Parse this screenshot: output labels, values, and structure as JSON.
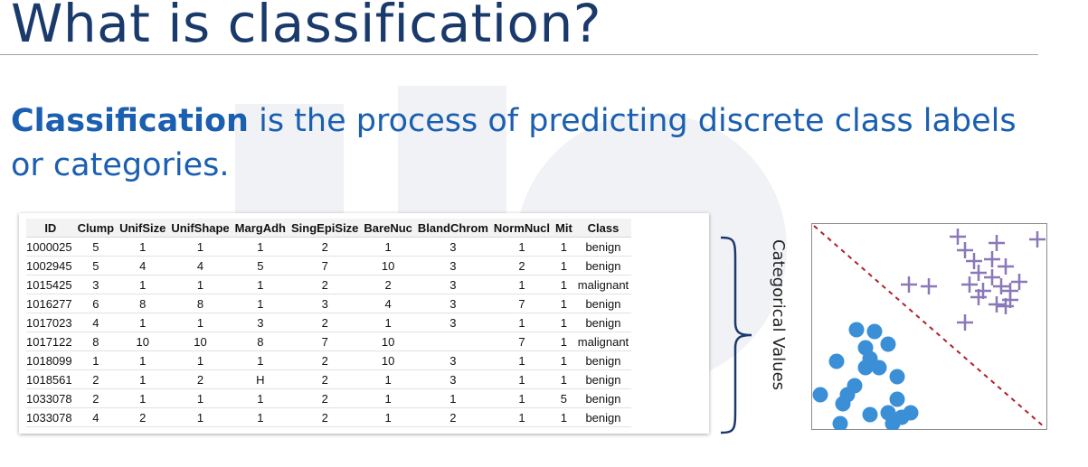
{
  "title": "What is classification?",
  "definition": {
    "term": "Classification",
    "text": " is the process of predicting discrete class labels or categories."
  },
  "table": {
    "headers": [
      "ID",
      "Clump",
      "UnifSize",
      "UnifShape",
      "MargAdh",
      "SingEpiSize",
      "BareNuc",
      "BlandChrom",
      "NormNucl",
      "Mit",
      "Class"
    ],
    "rows": [
      [
        "1000025",
        "5",
        "1",
        "1",
        "1",
        "2",
        "1",
        "3",
        "1",
        "1",
        "benign"
      ],
      [
        "1002945",
        "5",
        "4",
        "4",
        "5",
        "7",
        "10",
        "3",
        "2",
        "1",
        "benign"
      ],
      [
        "1015425",
        "3",
        "1",
        "1",
        "1",
        "2",
        "2",
        "3",
        "1",
        "1",
        "malignant"
      ],
      [
        "1016277",
        "6",
        "8",
        "8",
        "1",
        "3",
        "4",
        "3",
        "7",
        "1",
        "benign"
      ],
      [
        "1017023",
        "4",
        "1",
        "1",
        "3",
        "2",
        "1",
        "3",
        "1",
        "1",
        "benign"
      ],
      [
        "1017122",
        "8",
        "10",
        "10",
        "8",
        "7",
        "10",
        "",
        "7",
        "1",
        "malignant"
      ],
      [
        "1018099",
        "1",
        "1",
        "1",
        "1",
        "2",
        "10",
        "3",
        "1",
        "1",
        "benign"
      ],
      [
        "1018561",
        "2",
        "1",
        "2",
        "H",
        "2",
        "1",
        "3",
        "1",
        "1",
        "benign"
      ],
      [
        "1033078",
        "2",
        "1",
        "1",
        "1",
        "2",
        "1",
        "1",
        "1",
        "5",
        "benign"
      ],
      [
        "1033078",
        "4",
        "2",
        "1",
        "1",
        "2",
        "1",
        "2",
        "1",
        "1",
        "benign"
      ]
    ]
  },
  "brace_label": "Categorical Values",
  "colors": {
    "title": "#1a3a6b",
    "definition": "#1b5fb0",
    "circle_class": "#3a8fd6",
    "plus_class": "#8a78b8",
    "boundary": "#b0202a"
  }
}
